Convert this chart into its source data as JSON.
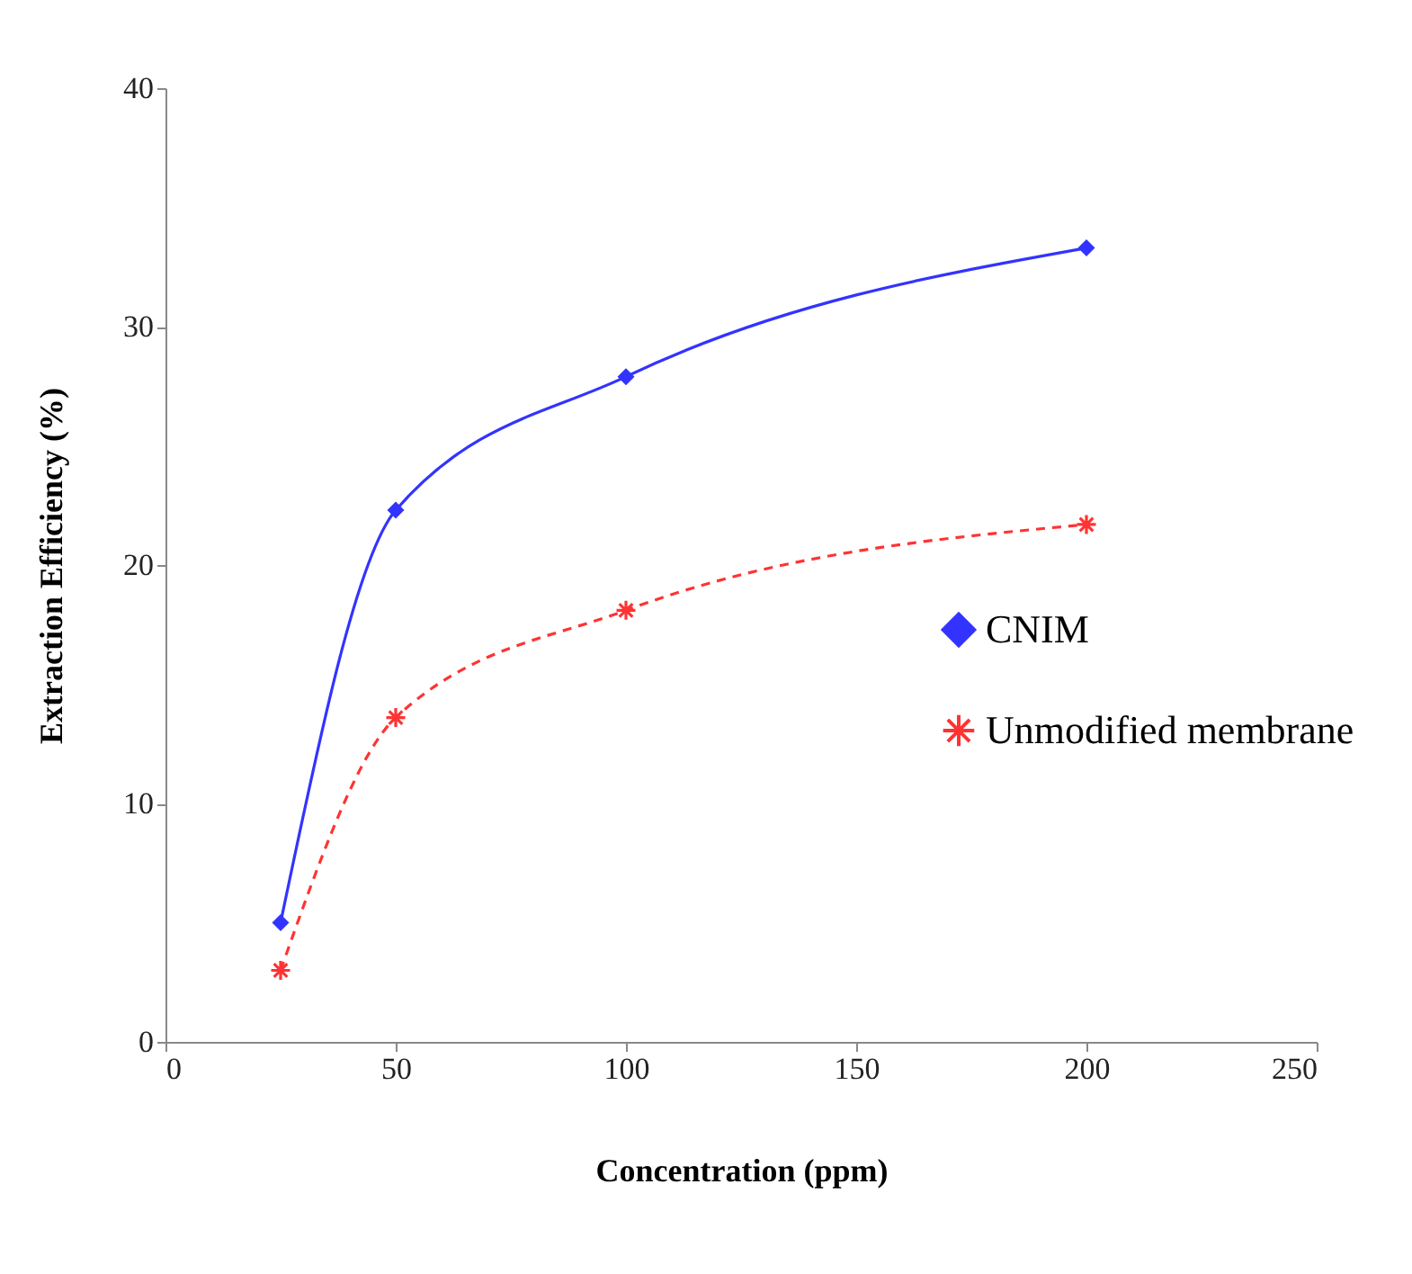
{
  "chart_data": {
    "type": "line",
    "xlabel": "Concentration  (ppm)",
    "ylabel": "Extraction Efficiency (%)",
    "x": [
      25,
      50,
      100,
      200
    ],
    "series": [
      {
        "name": "CNIM",
        "color": "#3333ff",
        "values": [
          5,
          22.3,
          27.9,
          33.3
        ],
        "marker": "diamond",
        "line_style": "solid"
      },
      {
        "name": "Unmodified membrane",
        "color": "#ff3333",
        "values": [
          3,
          13.6,
          18.1,
          21.7
        ],
        "marker": "cross",
        "line_style": "dashed"
      }
    ],
    "xlim": [
      0,
      250
    ],
    "xticks": [
      0,
      50,
      100,
      150,
      200,
      250
    ],
    "ylim": [
      0,
      40
    ],
    "yticks": [
      0,
      10,
      20,
      30,
      40
    ],
    "grid": false,
    "legend": "right"
  }
}
